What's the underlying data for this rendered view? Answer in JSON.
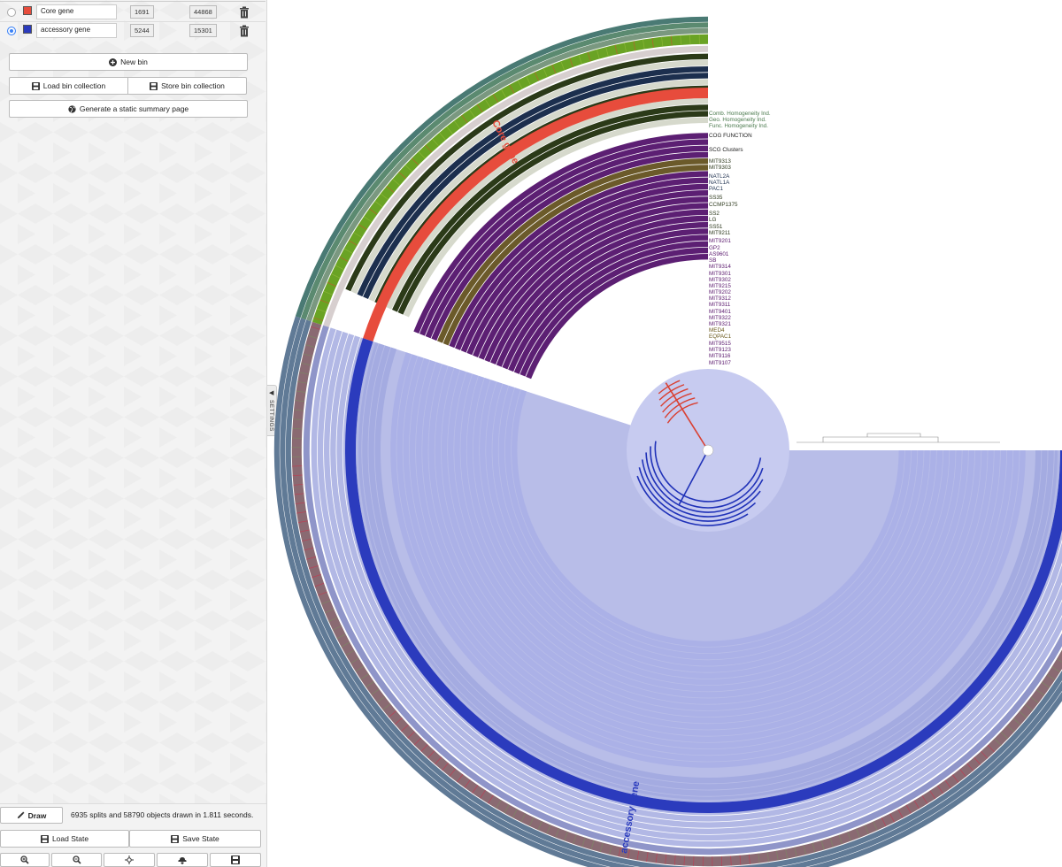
{
  "bins": [
    {
      "name": "Core gene",
      "color": "#e74c3c",
      "selected": false,
      "count1": "1691",
      "count2": "44868"
    },
    {
      "name": "accessory gene",
      "color": "#2b3bbd",
      "selected": true,
      "count1": "5244",
      "count2": "15301"
    }
  ],
  "buttons": {
    "new_bin": "New bin",
    "load_collection": "Load bin collection",
    "store_collection": "Store bin collection",
    "summary": "Generate a static summary page",
    "draw": "Draw",
    "load_state": "Load State",
    "save_state": "Save State"
  },
  "status": "6935 splits and 58790 objects drawn in 1.811 seconds.",
  "settings_tab": "SETTINGS",
  "zoom_icons": [
    "zoom-in-icon",
    "zoom-out-icon",
    "center-icon",
    "download-icon",
    "save-icon"
  ],
  "layers": [
    {
      "name": "Comb. Homogeneity Ind.",
      "color": "#4b7a4e"
    },
    {
      "name": "Geo. Homogeneity Ind.",
      "color": "#4b7a4e"
    },
    {
      "name": "Func. Homogeneity Ind.",
      "color": "#4b7a4e"
    },
    {
      "name": "COG FUNCTION",
      "color": "#222222"
    },
    {
      "name": "SCG Clusters",
      "color": "#222222"
    },
    {
      "name": "MIT9313",
      "color": "#2f3b1f"
    },
    {
      "name": "MIT9303",
      "color": "#2f3b1f"
    },
    {
      "name": "NATL2A",
      "color": "#1c2f4e"
    },
    {
      "name": "NATL1A",
      "color": "#1c2f4e"
    },
    {
      "name": "PAC1",
      "color": "#1c2f4e"
    },
    {
      "name": "SS35",
      "color": "#2f3b1f"
    },
    {
      "name": "CCMP1375",
      "color": "#2f3b1f"
    },
    {
      "name": "SS2",
      "color": "#2f3b1f"
    },
    {
      "name": "LG",
      "color": "#2f3b1f"
    },
    {
      "name": "SS51",
      "color": "#2f3b1f"
    },
    {
      "name": "MIT9211",
      "color": "#2f3b1f"
    },
    {
      "name": "MIT9201",
      "color": "#5b1a6e"
    },
    {
      "name": "GP2",
      "color": "#5b1a6e"
    },
    {
      "name": "AS9601",
      "color": "#5b1a6e"
    },
    {
      "name": "SB",
      "color": "#5b1a6e"
    },
    {
      "name": "MIT9314",
      "color": "#5b1a6e"
    },
    {
      "name": "MIT9301",
      "color": "#5b1a6e"
    },
    {
      "name": "MIT9302",
      "color": "#5b1a6e"
    },
    {
      "name": "MIT9215",
      "color": "#5b1a6e"
    },
    {
      "name": "MIT9202",
      "color": "#5b1a6e"
    },
    {
      "name": "MIT9312",
      "color": "#5b1a6e"
    },
    {
      "name": "MIT9311",
      "color": "#5b1a6e"
    },
    {
      "name": "MIT9401",
      "color": "#5b1a6e"
    },
    {
      "name": "MIT9322",
      "color": "#5b1a6e"
    },
    {
      "name": "MIT9321",
      "color": "#5b1a6e"
    },
    {
      "name": "MED4",
      "color": "#6b5a1c"
    },
    {
      "name": "EQPAC1",
      "color": "#6b5a1c"
    },
    {
      "name": "MIT9515",
      "color": "#5b1a6e"
    },
    {
      "name": "MIT9123",
      "color": "#5b1a6e"
    },
    {
      "name": "MIT9116",
      "color": "#5b1a6e"
    },
    {
      "name": "MIT9107",
      "color": "#5b1a6e"
    }
  ],
  "bin_labels": {
    "core": "Core gene",
    "accessory": "accessory gene"
  }
}
